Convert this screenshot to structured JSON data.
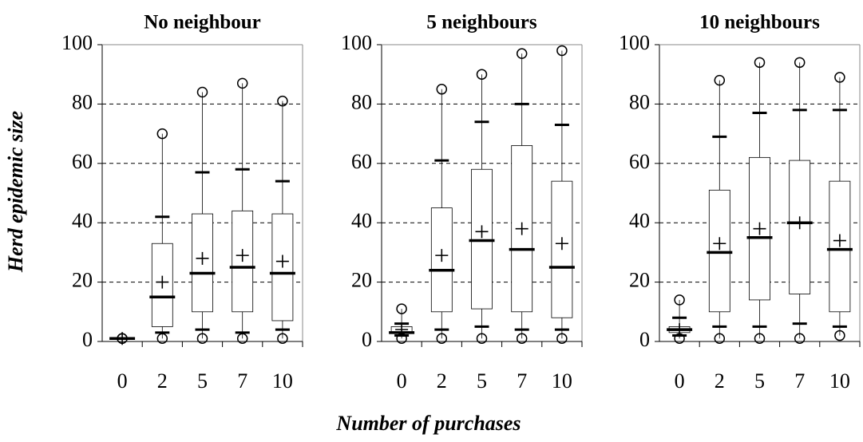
{
  "chart_data": [
    {
      "type": "box",
      "title": "No neighbour",
      "ylabel": "Herd epidemic size",
      "categories": [
        "0",
        "2",
        "5",
        "7",
        "10"
      ],
      "boxes": [
        {
          "min": 1,
          "p5": 1,
          "q1": 1,
          "median": 1,
          "mean": 1,
          "q3": 1,
          "p95": 1,
          "max": 1
        },
        {
          "min": 1,
          "p5": 3,
          "q1": 5,
          "median": 15,
          "mean": 20,
          "q3": 33,
          "p95": 42,
          "max": 70
        },
        {
          "min": 1,
          "p5": 4,
          "q1": 10,
          "median": 23,
          "mean": 28,
          "q3": 43,
          "p95": 57,
          "max": 84
        },
        {
          "min": 1,
          "p5": 3,
          "q1": 10,
          "median": 25,
          "mean": 29,
          "q3": 44,
          "p95": 58,
          "max": 87
        },
        {
          "min": 1,
          "p5": 4,
          "q1": 7,
          "median": 23,
          "mean": 27,
          "q3": 43,
          "p95": 54,
          "max": 81
        }
      ],
      "color": "#000000",
      "ylim": [
        0,
        100
      ],
      "yticks": [
        0,
        20,
        40,
        60,
        80,
        100
      ],
      "grid": true
    },
    {
      "type": "box",
      "title": "5 neighbours",
      "xlabel": "Number of purchases",
      "categories": [
        "0",
        "2",
        "5",
        "7",
        "10"
      ],
      "boxes": [
        {
          "min": 1,
          "p5": 2,
          "q1": 3,
          "median": 3,
          "mean": 4,
          "q3": 5,
          "p95": 6,
          "max": 11
        },
        {
          "min": 1,
          "p5": 4,
          "q1": 10,
          "median": 24,
          "mean": 29,
          "q3": 45,
          "p95": 61,
          "max": 85
        },
        {
          "min": 1,
          "p5": 5,
          "q1": 11,
          "median": 34,
          "mean": 37,
          "q3": 58,
          "p95": 74,
          "max": 90
        },
        {
          "min": 1,
          "p5": 4,
          "q1": 10,
          "median": 31,
          "mean": 38,
          "q3": 66,
          "p95": 80,
          "max": 97
        },
        {
          "min": 1,
          "p5": 4,
          "q1": 8,
          "median": 25,
          "mean": 33,
          "q3": 54,
          "p95": 73,
          "max": 98
        }
      ],
      "color": "#000000",
      "ylim": [
        0,
        100
      ],
      "yticks": [
        0,
        20,
        40,
        60,
        80,
        100
      ],
      "grid": true
    },
    {
      "type": "box",
      "title": "10 neighbours",
      "categories": [
        "0",
        "2",
        "5",
        "7",
        "10"
      ],
      "boxes": [
        {
          "min": 1,
          "p5": 2,
          "q1": 3,
          "median": 4,
          "mean": 4,
          "q3": 5,
          "p95": 8,
          "max": 14
        },
        {
          "min": 1,
          "p5": 5,
          "q1": 10,
          "median": 30,
          "mean": 33,
          "q3": 51,
          "p95": 69,
          "max": 88
        },
        {
          "min": 1,
          "p5": 5,
          "q1": 14,
          "median": 35,
          "mean": 38,
          "q3": 62,
          "p95": 77,
          "max": 94
        },
        {
          "min": 1,
          "p5": 6,
          "q1": 16,
          "median": 40,
          "mean": 40,
          "q3": 61,
          "p95": 78,
          "max": 94
        },
        {
          "min": 2,
          "p5": 5,
          "q1": 10,
          "median": 31,
          "mean": 34,
          "q3": 54,
          "p95": 78,
          "max": 89
        }
      ],
      "color": "#000000",
      "ylim": [
        0,
        100
      ],
      "yticks": [
        0,
        20,
        40,
        60,
        80,
        100
      ],
      "grid": true
    }
  ]
}
